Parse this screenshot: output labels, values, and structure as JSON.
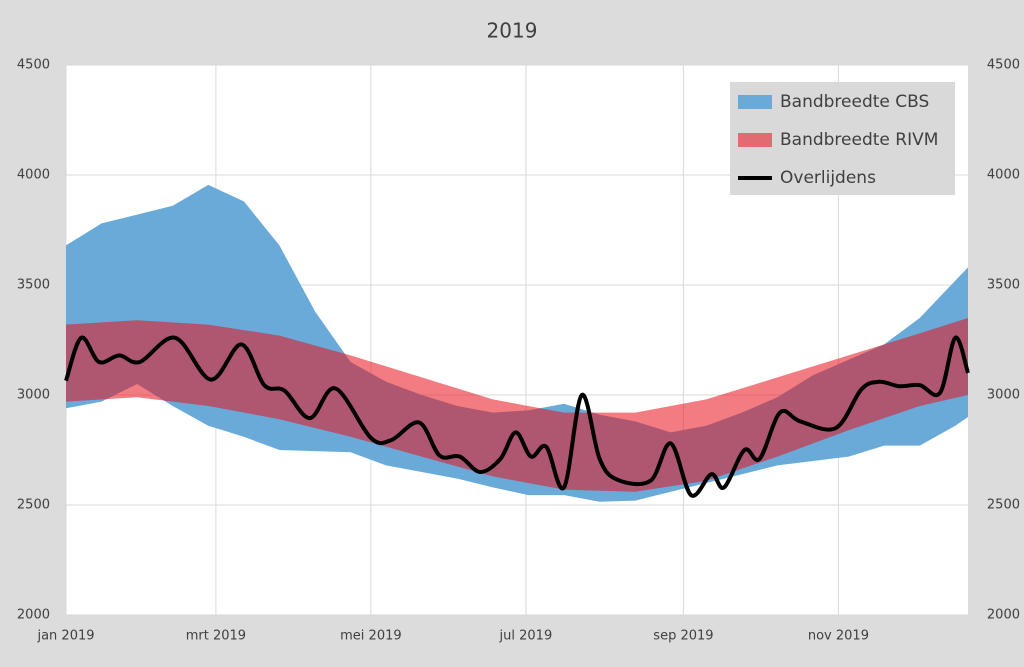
{
  "chart_data": {
    "type": "band-line",
    "title": "2019",
    "xlim": [
      0,
      355
    ],
    "xticks": [
      {
        "value": 0,
        "label": "jan 2019"
      },
      {
        "value": 59,
        "label": "mrt 2019"
      },
      {
        "value": 120,
        "label": "mei 2019"
      },
      {
        "value": 181,
        "label": "jul 2019"
      },
      {
        "value": 243,
        "label": "sep 2019"
      },
      {
        "value": 304,
        "label": "nov 2019"
      }
    ],
    "ylim": [
      2000,
      4500
    ],
    "yticks": [
      2000,
      2500,
      3000,
      3500,
      4000,
      4500
    ],
    "y2lim": [
      2000,
      4500
    ],
    "y2ticks": [
      2000,
      2500,
      3000,
      3500,
      4000,
      4500
    ],
    "grid": true,
    "legend": "top-right",
    "series": [
      {
        "name": "Bandbreedte CBS",
        "type": "band",
        "color": "#6aaad9",
        "x": [
          0,
          14,
          28,
          42,
          56,
          70,
          84,
          98,
          112,
          126,
          140,
          154,
          168,
          182,
          196,
          210,
          224,
          238,
          252,
          266,
          280,
          294,
          308,
          322,
          336,
          350,
          355
        ],
        "high": [
          3680,
          3780,
          3820,
          3860,
          3955,
          3880,
          3680,
          3380,
          3150,
          3060,
          3000,
          2950,
          2920,
          2930,
          2960,
          2910,
          2880,
          2830,
          2860,
          2920,
          2990,
          3090,
          3160,
          3230,
          3350,
          3520,
          3580
        ],
        "low": [
          2940,
          2970,
          3050,
          2950,
          2860,
          2810,
          2750,
          2745,
          2740,
          2680,
          2650,
          2620,
          2580,
          2545,
          2545,
          2515,
          2520,
          2560,
          2600,
          2640,
          2680,
          2700,
          2720,
          2770,
          2770,
          2860,
          2900
        ]
      },
      {
        "name": "Bandbreedte RIVM",
        "type": "band",
        "color": "#e8101a",
        "x": [
          0,
          28,
          56,
          84,
          112,
          140,
          168,
          196,
          224,
          252,
          280,
          308,
          336,
          355
        ],
        "high": [
          3320,
          3340,
          3320,
          3270,
          3180,
          3080,
          2980,
          2920,
          2920,
          2980,
          3080,
          3180,
          3280,
          3350
        ],
        "low": [
          2970,
          2990,
          2950,
          2890,
          2810,
          2720,
          2630,
          2570,
          2560,
          2610,
          2720,
          2840,
          2950,
          3000
        ]
      },
      {
        "name": "Overlijdens",
        "type": "line",
        "color": "#000000",
        "x": [
          0,
          6,
          13,
          21,
          29,
          43,
          57,
          69,
          78,
          86,
          96,
          106,
          120,
          128,
          139,
          147,
          155,
          163,
          171,
          177,
          183,
          189,
          196,
          203,
          210,
          217,
          230,
          238,
          246,
          254,
          259,
          267,
          273,
          281,
          289,
          303,
          313,
          320,
          328,
          336,
          344,
          350,
          355
        ],
        "values": [
          3065,
          3260,
          3150,
          3180,
          3150,
          3260,
          3070,
          3230,
          3045,
          3020,
          2895,
          3030,
          2805,
          2795,
          2875,
          2725,
          2720,
          2650,
          2710,
          2830,
          2720,
          2765,
          2580,
          3000,
          2710,
          2615,
          2610,
          2780,
          2545,
          2640,
          2580,
          2750,
          2710,
          2920,
          2880,
          2850,
          3025,
          3060,
          3040,
          3045,
          3010,
          3260,
          3100
        ]
      }
    ]
  }
}
